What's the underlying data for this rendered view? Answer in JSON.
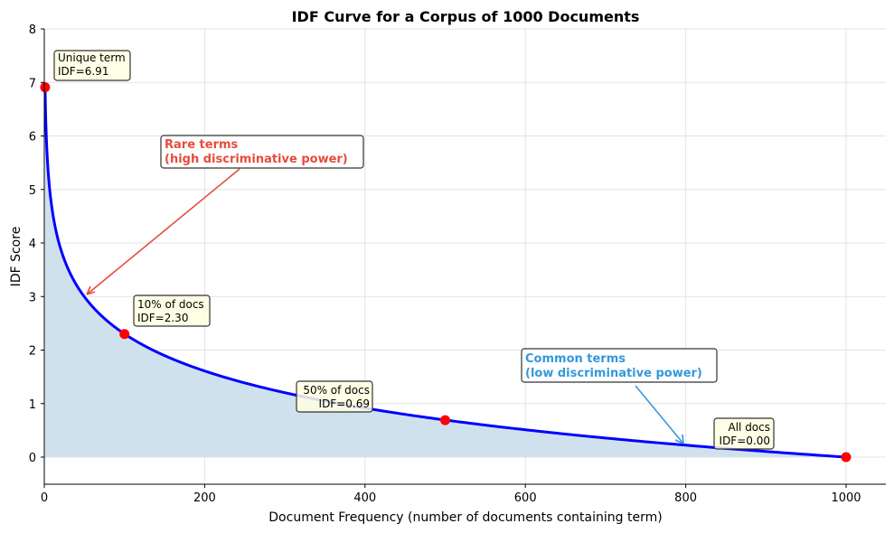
{
  "chart_data": {
    "type": "line",
    "title": "IDF Curve for a Corpus of 1000 Documents",
    "xlabel": "Document Frequency (number of documents containing term)",
    "ylabel": "IDF Score",
    "xlim": [
      0,
      1050
    ],
    "ylim": [
      -0.5,
      8
    ],
    "xticks": [
      0,
      200,
      400,
      600,
      800,
      1000
    ],
    "yticks": [
      0,
      1,
      2,
      3,
      4,
      5,
      6,
      7,
      8
    ],
    "grid": true,
    "corpus_size": 1000,
    "curve": "IDF = ln(1000 / df), df from 1 to 1000, area under curve shaded",
    "colors": {
      "line": "#0000ff",
      "fill": "#d0e1ee",
      "points": "#ff0000",
      "rare": "#e74c3c",
      "common": "#3498db"
    },
    "highlight_points": [
      {
        "x": 1,
        "y": 6.91
      },
      {
        "x": 100,
        "y": 2.3
      },
      {
        "x": 500,
        "y": 0.69
      },
      {
        "x": 1000,
        "y": 0.0
      }
    ],
    "annotations": {
      "unique": [
        "Unique term",
        "IDF=6.91"
      ],
      "ten": [
        "10% of docs",
        "IDF=2.30"
      ],
      "fifty": [
        "50% of docs",
        "IDF=0.69"
      ],
      "all": [
        "All docs",
        "IDF=0.00"
      ],
      "rare": [
        "Rare terms",
        "(high discriminative power)"
      ],
      "common": [
        "Common terms",
        "(low discriminative power)"
      ]
    }
  }
}
